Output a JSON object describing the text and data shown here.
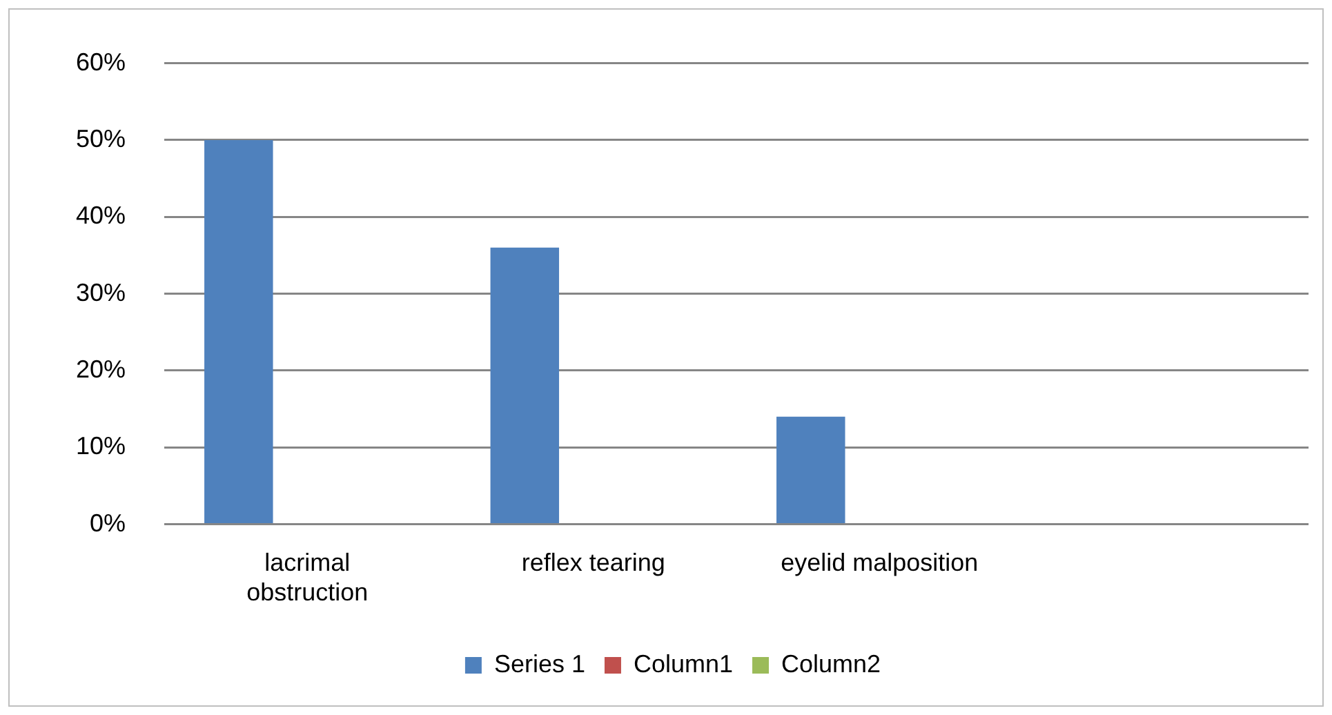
{
  "chart_data": {
    "type": "bar",
    "categories": [
      "lacrimal obstruction",
      "reflex tearing",
      "eyelid malposition",
      null
    ],
    "series": [
      {
        "name": "Series 1",
        "color": "#4f81bd",
        "values": [
          50,
          36,
          14,
          null
        ]
      },
      {
        "name": "Column1",
        "color": "#c0504d",
        "values": [
          null,
          null,
          null,
          null
        ]
      },
      {
        "name": "Column2",
        "color": "#9bbb59",
        "values": [
          null,
          null,
          null,
          null
        ]
      }
    ],
    "ylim": [
      0,
      60
    ],
    "yticks": [
      {
        "value": 0,
        "label": "0%"
      },
      {
        "value": 10,
        "label": "10%"
      },
      {
        "value": 20,
        "label": "20%"
      },
      {
        "value": 30,
        "label": "30%"
      },
      {
        "value": 40,
        "label": "40%"
      },
      {
        "value": 50,
        "label": "50%"
      },
      {
        "value": 60,
        "label": "60%"
      }
    ],
    "grid": "y",
    "legend": "bottom"
  }
}
